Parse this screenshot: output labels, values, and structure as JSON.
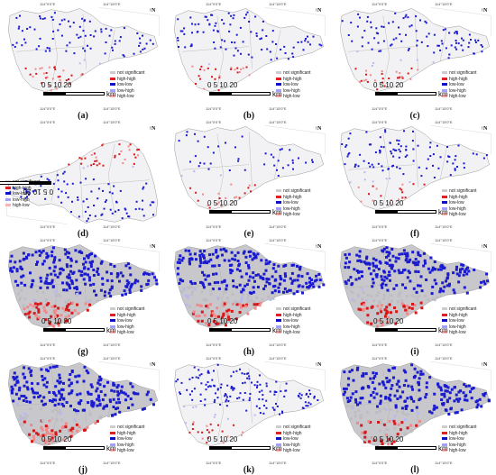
{
  "legend": {
    "items": [
      {
        "label": "not significant",
        "color": "#cccccc"
      },
      {
        "label": "high-high",
        "color": "#e02020"
      },
      {
        "label": "low-low",
        "color": "#1010c8"
      },
      {
        "label": "low-high",
        "color": "#a0a0ff"
      },
      {
        "label": "high-low",
        "color": "#ffb0b0"
      }
    ]
  },
  "scale": {
    "ticks": "0   5  10      20",
    "unit": "km"
  },
  "coords": {
    "lon_a": "114°0'0\"E",
    "lon_b": "114°15'0\"E",
    "lat_a": "22°30'0\"N",
    "lat_b": "22°45'0\"N"
  },
  "north": "N",
  "panels": [
    {
      "id": "a",
      "label": "(a)",
      "density": "low",
      "hh": "med"
    },
    {
      "id": "b",
      "label": "(b)",
      "density": "low",
      "hh": "low"
    },
    {
      "id": "c",
      "label": "(c)",
      "density": "low",
      "hh": "med"
    },
    {
      "id": "d",
      "label": "(d)",
      "density": "low",
      "hh": "med",
      "flipped": true
    },
    {
      "id": "e",
      "label": "(e)",
      "density": "vlow",
      "hh": "low"
    },
    {
      "id": "f",
      "label": "(f)",
      "density": "low",
      "hh": "low"
    },
    {
      "id": "g",
      "label": "(g)",
      "density": "high",
      "hh": "high"
    },
    {
      "id": "h",
      "label": "(h)",
      "density": "high",
      "hh": "high"
    },
    {
      "id": "i",
      "label": "(i)",
      "density": "high",
      "hh": "high"
    },
    {
      "id": "j",
      "label": "(j)",
      "density": "high",
      "hh": "high"
    },
    {
      "id": "k",
      "label": "(k)",
      "density": "med",
      "hh": "low"
    },
    {
      "id": "l",
      "label": "(l)",
      "density": "high",
      "hh": "med"
    }
  ]
}
